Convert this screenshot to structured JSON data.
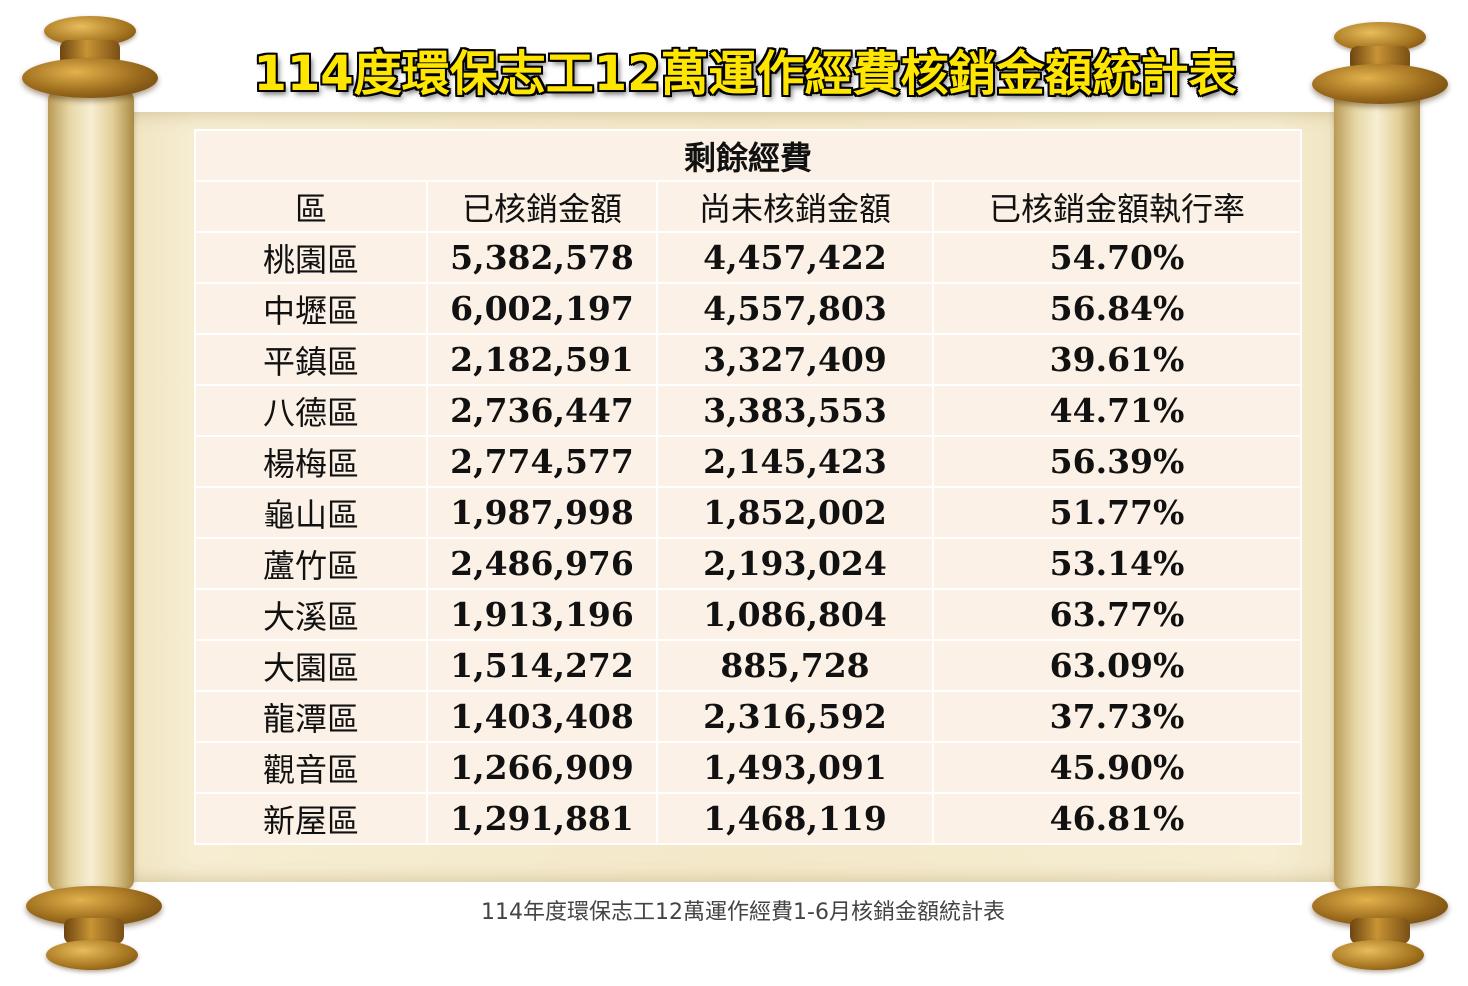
{
  "title": "114度環保志工12萬運作經費核銷金額統計表",
  "table": {
    "group_header": "剩餘經費",
    "columns": [
      "區",
      "已核銷金額",
      "尚未核銷金額",
      "已核銷金額執行率"
    ],
    "rows": [
      {
        "region": "桃園區",
        "verified": "5,382,578",
        "unverified": "4,457,422",
        "rate": "54.70%"
      },
      {
        "region": "中壢區",
        "verified": "6,002,197",
        "unverified": "4,557,803",
        "rate": "56.84%"
      },
      {
        "region": "平鎮區",
        "verified": "2,182,591",
        "unverified": "3,327,409",
        "rate": "39.61%"
      },
      {
        "region": "八德區",
        "verified": "2,736,447",
        "unverified": "3,383,553",
        "rate": "44.71%"
      },
      {
        "region": "楊梅區",
        "verified": "2,774,577",
        "unverified": "2,145,423",
        "rate": "56.39%"
      },
      {
        "region": "龜山區",
        "verified": "1,987,998",
        "unverified": "1,852,002",
        "rate": "51.77%"
      },
      {
        "region": "蘆竹區",
        "verified": "2,486,976",
        "unverified": "2,193,024",
        "rate": "53.14%"
      },
      {
        "region": "大溪區",
        "verified": "1,913,196",
        "unverified": "1,086,804",
        "rate": "63.77%"
      },
      {
        "region": "大園區",
        "verified": "1,514,272",
        "unverified": "885,728",
        "rate": "63.09%"
      },
      {
        "region": "龍潭區",
        "verified": "1,403,408",
        "unverified": "2,316,592",
        "rate": "37.73%"
      },
      {
        "region": "觀音區",
        "verified": "1,266,909",
        "unverified": "1,493,091",
        "rate": "45.90%"
      },
      {
        "region": "新屋區",
        "verified": "1,291,881",
        "unverified": "1,468,119",
        "rate": "46.81%"
      }
    ]
  },
  "caption": "114年度環保志工12萬運作經費1-6月核銷金額統計表",
  "colors": {
    "title_fill": "#ffe600",
    "title_outline": "#000000",
    "cell_background": "#fbf1e6",
    "parchment": "#f3e8c8",
    "knob_gold": "#9a6a1c"
  }
}
